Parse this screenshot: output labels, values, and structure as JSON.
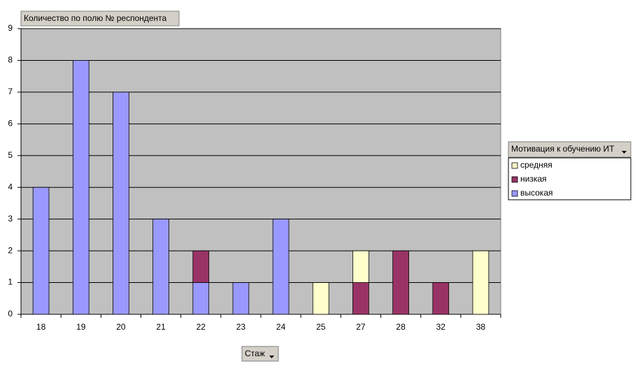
{
  "chart_data": {
    "type": "bar",
    "stacked": true,
    "title": "Количество по полю № респондента",
    "x_label": "Стаж",
    "legend_title": "Мотивация к обучению ИТ",
    "categories": [
      "18",
      "19",
      "20",
      "21",
      "22",
      "23",
      "24",
      "25",
      "27",
      "28",
      "32",
      "38"
    ],
    "series": [
      {
        "name": "высокая",
        "color": "#9999ff",
        "values": [
          4,
          8,
          7,
          3,
          1,
          1,
          3,
          null,
          null,
          null,
          null,
          null
        ]
      },
      {
        "name": "низкая",
        "color": "#993366",
        "values": [
          null,
          null,
          null,
          null,
          1,
          null,
          null,
          null,
          1,
          2,
          1,
          null
        ]
      },
      {
        "name": "средняя",
        "color": "#ffffcc",
        "values": [
          null,
          null,
          null,
          null,
          null,
          null,
          null,
          1,
          1,
          null,
          null,
          2
        ]
      }
    ],
    "ylim": [
      0,
      9
    ],
    "yticks": [
      0,
      1,
      2,
      3,
      4,
      5,
      6,
      7,
      8,
      9
    ],
    "grid": true,
    "legend": "right"
  }
}
